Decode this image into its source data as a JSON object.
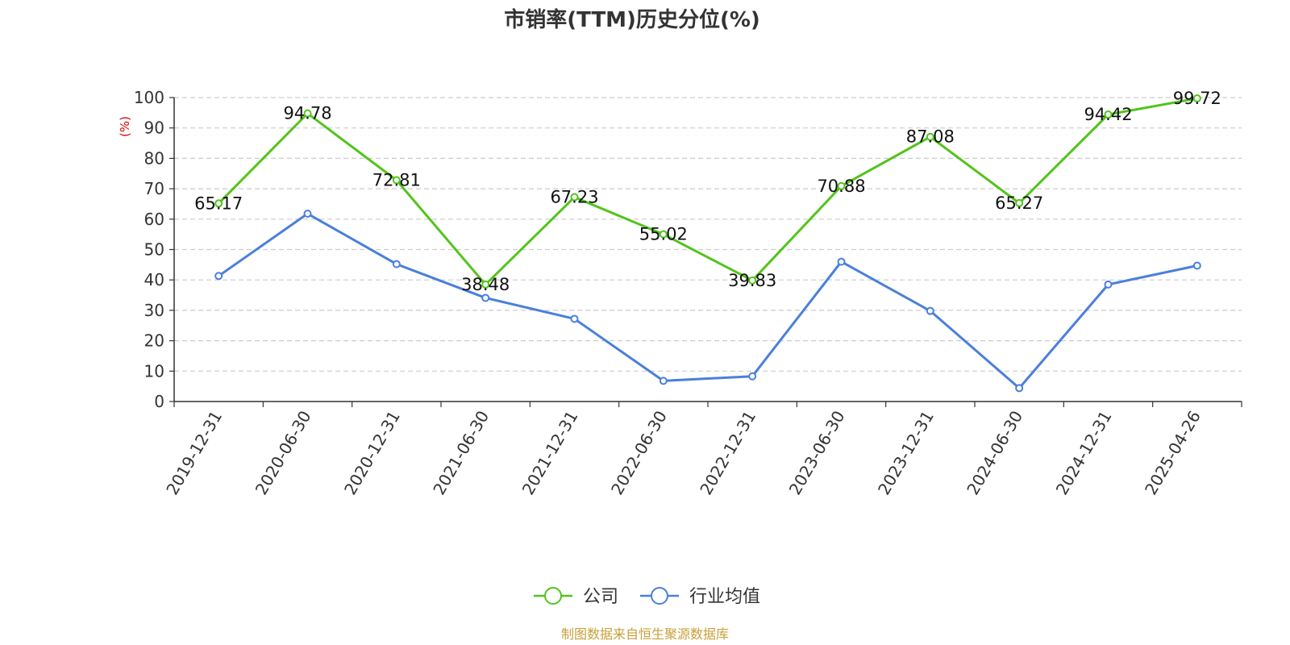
{
  "chart_data": {
    "type": "line",
    "title": "市销率(TTM)历史分位(%)",
    "ylabel": "(%)",
    "xlabel": "",
    "ylim": [
      0,
      100
    ],
    "y_ticks": [
      0,
      10,
      20,
      30,
      40,
      50,
      60,
      70,
      80,
      90,
      100
    ],
    "grid": true,
    "legend_position": "bottom-center",
    "categories": [
      "2019-12-31",
      "2020-06-30",
      "2020-12-31",
      "2021-06-30",
      "2021-12-31",
      "2022-06-30",
      "2022-12-31",
      "2023-06-30",
      "2023-12-31",
      "2024-06-30",
      "2024-12-31",
      "2025-04-26"
    ],
    "series": [
      {
        "name": "公司",
        "color": "#52c41a",
        "values": [
          65.17,
          94.78,
          72.81,
          38.48,
          67.23,
          55.02,
          39.83,
          70.88,
          87.08,
          65.27,
          94.42,
          99.72
        ],
        "data_labels": [
          "65.17",
          "94.78",
          "72.81",
          "38.48",
          "67.23",
          "55.02",
          "39.83",
          "70.88",
          "87.08",
          "65.27",
          "94.42",
          "99.72"
        ]
      },
      {
        "name": "行业均值",
        "color": "#4a7fdc",
        "values": [
          41.3,
          61.8,
          45.2,
          34.1,
          27.2,
          6.8,
          8.3,
          46.0,
          29.8,
          4.4,
          38.5,
          44.7
        ]
      }
    ]
  },
  "source": "制图数据来自恒生聚源数据库",
  "colors": {
    "axis": "#333333",
    "grid": "#cccccc",
    "ylabel": "#e00000",
    "source": "#c8a03a"
  }
}
